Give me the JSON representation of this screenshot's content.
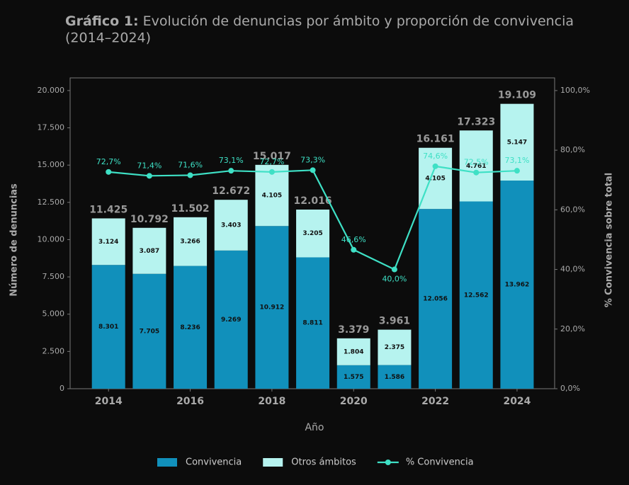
{
  "chart_data": {
    "type": "stacked_bar_line",
    "title_label": "Gráfico 1:",
    "title": "Evolución de denuncias por ámbito y proporción de convivencia",
    "subtitle": "(2014–2024)",
    "x_label": "Año",
    "y_label": "Número de denuncias",
    "y2_label": "% Convivencia sobre total",
    "x": [
      2014,
      2015,
      2016,
      2017,
      2018,
      2019,
      2020,
      2021,
      2022,
      2023,
      2024
    ],
    "xlim": [
      2013.06,
      2024.92
    ],
    "xticks": [
      2014,
      2016,
      2018,
      2020,
      2022,
      2024
    ],
    "ylim": [
      0,
      20850
    ],
    "yticks": [
      0,
      {
        "value": 2500,
        "label": "2.500"
      },
      {
        "value": 5000,
        "label": "5.000"
      },
      {
        "value": 7500,
        "label": "7.500"
      },
      {
        "value": 10000,
        "label": "10.000"
      },
      {
        "value": 12500,
        "label": "12.500"
      },
      {
        "value": 15000,
        "label": "15.000"
      },
      {
        "value": 17500,
        "label": "17.500"
      },
      {
        "value": 20000,
        "label": "20.000"
      }
    ],
    "y2lim": [
      0,
      104.25
    ],
    "y2ticks": [
      {
        "value": 0,
        "label": "0,0%"
      },
      {
        "value": 20,
        "label": "20,0%"
      },
      {
        "value": 40,
        "label": "40,0%"
      },
      {
        "value": 60,
        "label": "60,0%"
      },
      {
        "value": 80,
        "label": "80,0%"
      },
      {
        "value": 100,
        "label": "100,0%"
      }
    ],
    "series": [
      {
        "name": "Convivencia",
        "color": "#1190bb",
        "values": [
          8301,
          7705,
          8236,
          9269,
          10912,
          8811,
          1575,
          1586,
          12056,
          12562,
          13962
        ],
        "value_labels": [
          "8.301",
          "7.705",
          "8.236",
          "9.269",
          "10.912",
          "8.811",
          "1.575",
          "1.586",
          "12.056",
          "12.562",
          "13.962"
        ]
      },
      {
        "name": "Otros ámbitos",
        "color": "#b6f3ef",
        "values": [
          3124,
          3087,
          3266,
          3403,
          4105,
          3205,
          1804,
          2375,
          4105,
          4761,
          5147
        ],
        "value_labels": [
          "3.124",
          "3.087",
          "3.266",
          "3.403",
          "4.105",
          "3.205",
          "1.804",
          "2.375",
          "4.105",
          "4.761",
          "5.147"
        ]
      },
      {
        "name": "% Convivencia",
        "color": "#3ee0c5",
        "axis": "y2",
        "values": [
          72.7,
          71.4,
          71.6,
          73.1,
          72.7,
          73.3,
          46.6,
          40.0,
          74.6,
          72.5,
          73.1
        ],
        "value_labels": [
          "72,7%",
          "71,4%",
          "71,6%",
          "73,1%",
          "72,7%",
          "73,3%",
          "46,6%",
          "40,0%",
          "74,6%",
          "72,5%",
          "73,1%"
        ]
      }
    ],
    "totals": {
      "values": [
        11425,
        10792,
        11502,
        12672,
        15017,
        12016,
        3379,
        3961,
        16161,
        17323,
        19109
      ],
      "value_labels": [
        "11.425",
        "10.792",
        "11.502",
        "12.672",
        "15.017",
        "12.016",
        "3.379",
        "3.961",
        "16.161",
        "17.323",
        "19.109"
      ]
    },
    "legend": "bottom"
  }
}
